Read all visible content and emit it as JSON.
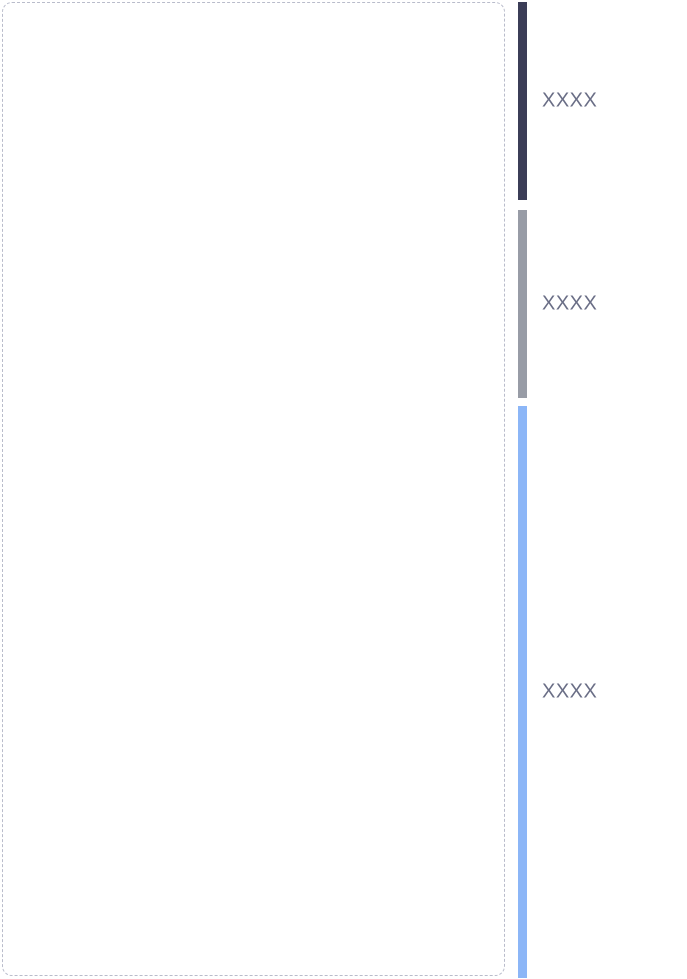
{
  "canvas": {
    "label": ""
  },
  "segments": [
    {
      "label": "XXXX",
      "color": "#3b3d57"
    },
    {
      "label": "XXXX",
      "color": "#989ca6"
    },
    {
      "label": "XXXX",
      "color": "#8cb6f7"
    }
  ]
}
